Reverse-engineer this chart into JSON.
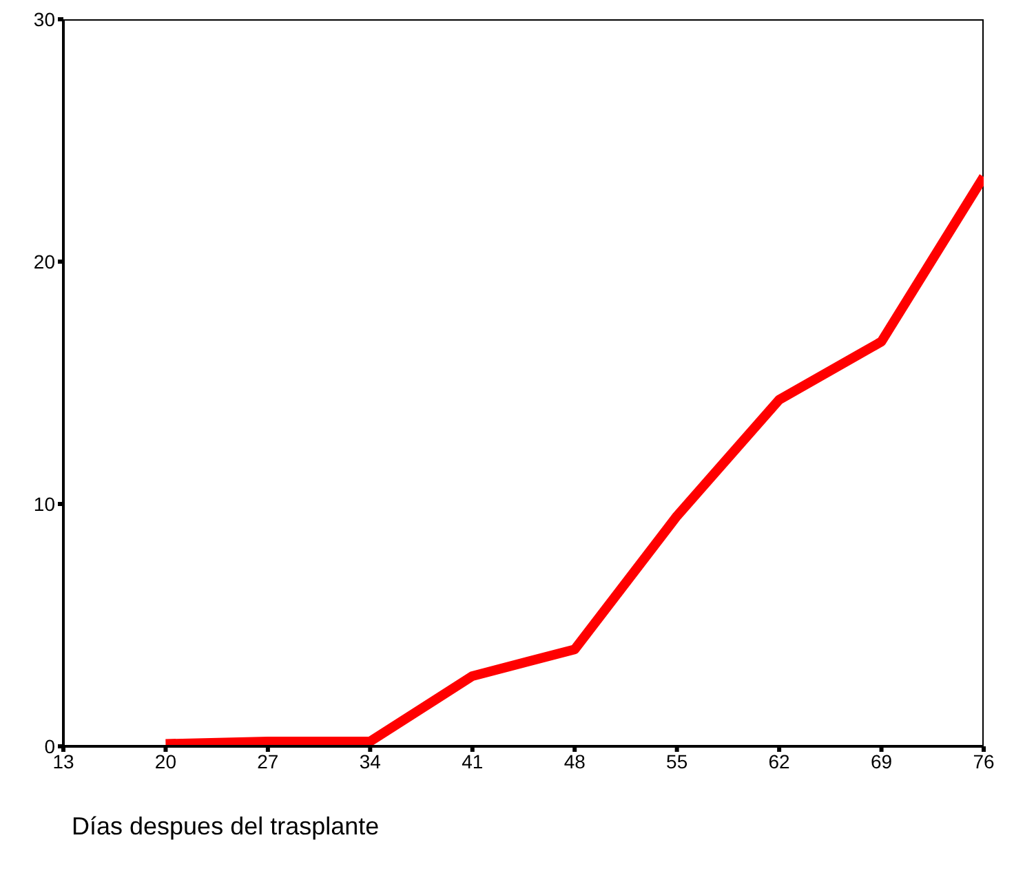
{
  "chart_data": {
    "type": "line",
    "xlabel": "Días despues del trasplante",
    "x": [
      20,
      27,
      34,
      41,
      48,
      55,
      62,
      69,
      76
    ],
    "series": [
      {
        "color": "#ff0000",
        "values": [
          0.1,
          0.2,
          0.2,
          2.9,
          4.0,
          9.5,
          14.3,
          16.7,
          23.5
        ]
      }
    ],
    "xlim": [
      13,
      76
    ],
    "xticks": [
      13,
      20,
      27,
      34,
      41,
      48,
      55,
      62,
      69,
      76
    ],
    "ylim": [
      0,
      30
    ],
    "yticks": [
      0,
      10,
      20,
      30
    ],
    "marker": "none",
    "line_style": "solid"
  }
}
